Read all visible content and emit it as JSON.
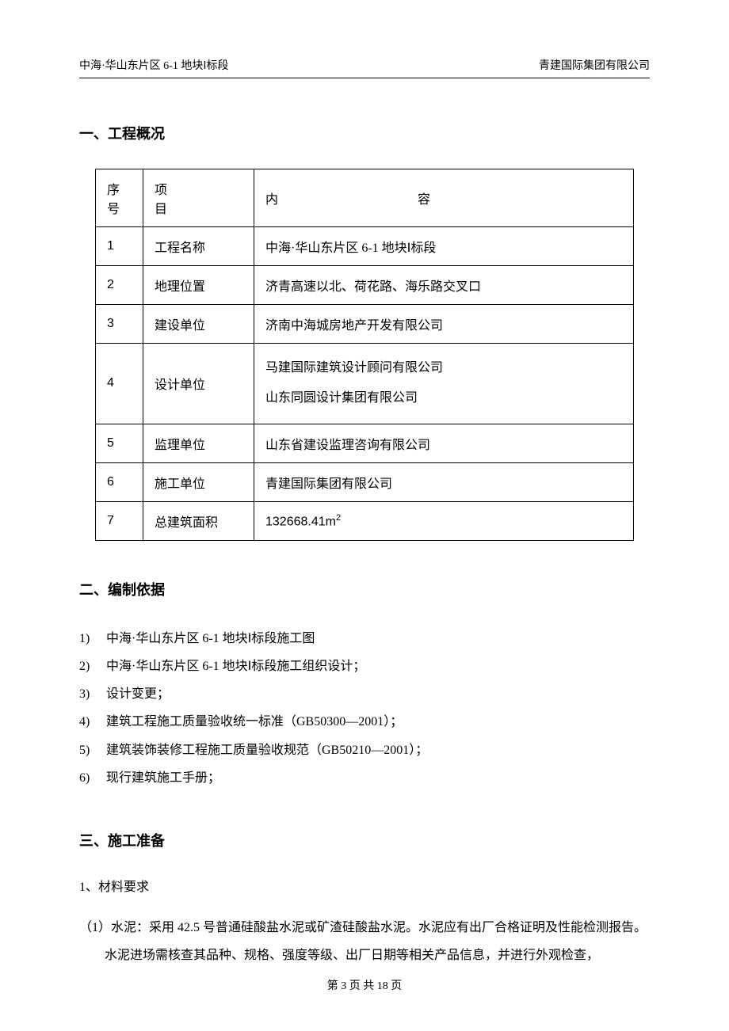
{
  "header": {
    "left": "中海·华山东片区 6-1 地块Ⅰ标段",
    "right": "青建国际集团有限公司"
  },
  "section1": {
    "title": "一、工程概况",
    "table": {
      "headers": {
        "idx": "序号",
        "proj": "项　目",
        "content": "内　　容"
      },
      "rows": [
        {
          "idx": "1",
          "proj": "工程名称",
          "content": "中海·华山东片区 6-1 地块Ⅰ标段"
        },
        {
          "idx": "2",
          "proj": "地理位置",
          "content": "济青高速以北、荷花路、海乐路交叉口"
        },
        {
          "idx": "3",
          "proj": "建设单位",
          "content": "济南中海城房地产开发有限公司"
        },
        {
          "idx": "4",
          "proj": "设计单位",
          "content_lines": [
            "马建国际建筑设计顾问有限公司",
            "山东同圆设计集团有限公司"
          ]
        },
        {
          "idx": "5",
          "proj": "监理单位",
          "content": "山东省建设监理咨询有限公司"
        },
        {
          "idx": "6",
          "proj": "施工单位",
          "content": "青建国际集团有限公司"
        },
        {
          "idx": "7",
          "proj": "总建筑面积",
          "content_area": "132668.41m",
          "content_sup": "2"
        }
      ]
    }
  },
  "section2": {
    "title": "二、编制依据",
    "items": [
      "中海·华山东片区 6-1 地块Ⅰ标段施工图",
      "中海·华山东片区 6-1 地块Ⅰ标段施工组织设计；",
      "设计变更；",
      "建筑工程施工质量验收统一标准（GB50300—2001）；",
      "建筑装饰装修工程施工质量验收规范（GB50210—2001）；",
      "现行建筑施工手册；"
    ]
  },
  "section3": {
    "title": "三、施工准备",
    "sub1": "1、材料要求",
    "p1": "（1）水泥：采用 42.5 号普通硅酸盐水泥或矿渣硅酸盐水泥。水泥应有出厂合格证明及性能检测报告。",
    "p2": "水泥进场需核查其品种、规格、强度等级、出厂日期等相关产品信息，并进行外观检查，"
  },
  "footer": "第 3 页 共 18 页"
}
